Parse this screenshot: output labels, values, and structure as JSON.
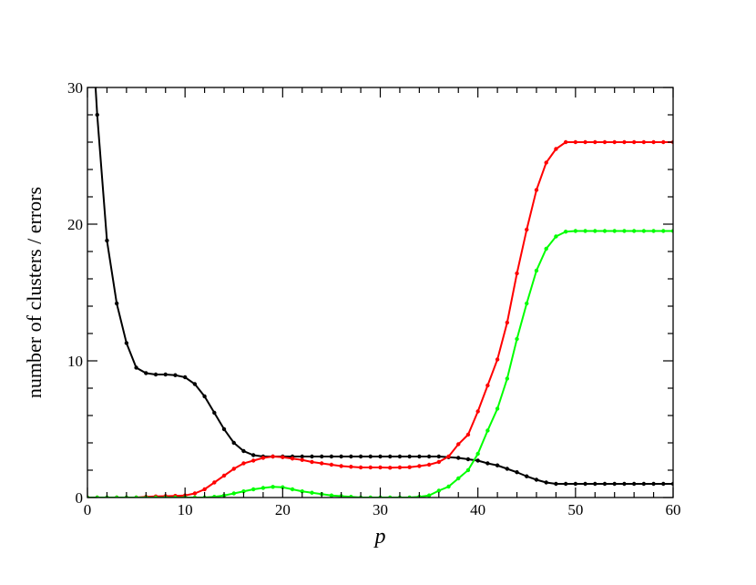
{
  "chart_data": {
    "type": "line",
    "xlabel": "p",
    "ylabel": "number of clusters / errors",
    "xlim": [
      0,
      60
    ],
    "ylim": [
      0,
      30
    ],
    "xticks": [
      0,
      10,
      20,
      30,
      40,
      50,
      60
    ],
    "yticks": [
      0,
      10,
      20,
      30
    ],
    "x_minor_step": 2,
    "y_minor_step": 2,
    "grid": false,
    "legend": "none",
    "markers": "small dots",
    "x": [
      0,
      1,
      2,
      3,
      4,
      5,
      6,
      7,
      8,
      9,
      10,
      11,
      12,
      13,
      14,
      15,
      16,
      17,
      18,
      19,
      20,
      21,
      22,
      23,
      24,
      25,
      26,
      27,
      28,
      29,
      30,
      31,
      32,
      33,
      34,
      35,
      36,
      37,
      38,
      39,
      40,
      41,
      42,
      43,
      44,
      45,
      46,
      47,
      48,
      49,
      50,
      51,
      52,
      53,
      54,
      55,
      56,
      57,
      58,
      59,
      60
    ],
    "series": [
      {
        "color": "#000000",
        "values": [
          40,
          28,
          18.8,
          14.2,
          11.3,
          9.5,
          9.1,
          9.0,
          9.0,
          8.95,
          8.8,
          8.3,
          7.4,
          6.2,
          5.0,
          4.0,
          3.4,
          3.1,
          3.0,
          3.0,
          3.0,
          3.0,
          3.0,
          3.0,
          3.0,
          3.0,
          3.0,
          3.0,
          3.0,
          3.0,
          3.0,
          3.0,
          3.0,
          3.0,
          3.0,
          3.0,
          3.0,
          2.95,
          2.9,
          2.8,
          2.7,
          2.5,
          2.35,
          2.1,
          1.85,
          1.55,
          1.3,
          1.1,
          1.0,
          1.0,
          1.0,
          1.0,
          1.0,
          1.0,
          1.0,
          1.0,
          1.0,
          1.0,
          1.0,
          1.0,
          1.0
        ]
      },
      {
        "color": "#ff0000",
        "values": [
          0,
          0,
          0,
          0,
          0,
          0,
          0.05,
          0.08,
          0.1,
          0.12,
          0.15,
          0.3,
          0.6,
          1.1,
          1.6,
          2.1,
          2.5,
          2.7,
          2.9,
          3.0,
          2.95,
          2.85,
          2.75,
          2.6,
          2.5,
          2.4,
          2.3,
          2.25,
          2.2,
          2.2,
          2.2,
          2.18,
          2.2,
          2.22,
          2.3,
          2.4,
          2.6,
          3.0,
          3.9,
          4.6,
          6.3,
          8.2,
          10.1,
          12.8,
          16.4,
          19.6,
          22.5,
          24.5,
          25.5,
          26.0,
          26.0,
          26.0,
          26.0,
          26.0,
          26.0,
          26.0,
          26.0,
          26.0,
          26.0,
          26.0,
          26.0
        ]
      },
      {
        "color": "#00ff00",
        "values": [
          0,
          0,
          0,
          0,
          0,
          0,
          0,
          0,
          0,
          0,
          0,
          0,
          0,
          0.05,
          0.15,
          0.3,
          0.45,
          0.6,
          0.7,
          0.78,
          0.75,
          0.6,
          0.45,
          0.35,
          0.25,
          0.15,
          0.1,
          0.05,
          0,
          0,
          0,
          0,
          0,
          0,
          0.05,
          0.15,
          0.5,
          0.8,
          1.4,
          2.0,
          3.2,
          4.9,
          6.5,
          8.7,
          11.6,
          14.2,
          16.6,
          18.2,
          19.1,
          19.45,
          19.5,
          19.5,
          19.5,
          19.5,
          19.5,
          19.5,
          19.5,
          19.5,
          19.5,
          19.5,
          19.5
        ]
      }
    ]
  }
}
